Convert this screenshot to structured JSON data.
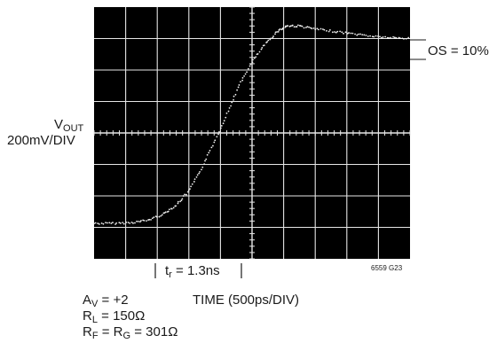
{
  "chart_data": {
    "type": "line",
    "title": "",
    "ylabel": {
      "main": "V",
      "sub": "OUT",
      "scale": "200mV/DIV"
    },
    "xlabel": "TIME (500ps/DIV)",
    "x_unit": "ps",
    "y_unit": "mV",
    "xlim": [
      -2500,
      2500
    ],
    "ylim": [
      -800,
      800
    ],
    "grid": true,
    "divisions": {
      "x": 10,
      "y": 8
    },
    "series": [
      {
        "name": "",
        "color": "#f2f2f2",
        "points": [
          [
            -2500,
            -575
          ],
          [
            -2200,
            -575
          ],
          [
            -1900,
            -570
          ],
          [
            -1650,
            -555
          ],
          [
            -1400,
            -515
          ],
          [
            -1200,
            -460
          ],
          [
            -1000,
            -370
          ],
          [
            -800,
            -230
          ],
          [
            -600,
            -60
          ],
          [
            -400,
            120
          ],
          [
            -200,
            305
          ],
          [
            0,
            450
          ],
          [
            200,
            560
          ],
          [
            400,
            645
          ],
          [
            550,
            680
          ],
          [
            750,
            680
          ],
          [
            1000,
            660
          ],
          [
            1300,
            645
          ],
          [
            1600,
            630
          ],
          [
            1900,
            615
          ],
          [
            2200,
            605
          ],
          [
            2500,
            600
          ]
        ]
      }
    ],
    "annotations": {
      "overshoot": "OS = 10%",
      "rise_time": {
        "main": "t",
        "sub": "r",
        "value": " = 1.3ns"
      },
      "figure_id": "6559 G23"
    }
  },
  "conditions": {
    "av": {
      "main": "A",
      "sub": "V",
      "value": " = +2"
    },
    "rl": {
      "main": "R",
      "sub": "L",
      "value": " = 150Ω"
    },
    "rf": {
      "main": "R",
      "sub1": "F",
      "eq": " = R",
      "sub2": "G",
      "value": " = 301Ω"
    }
  },
  "colors": {
    "screen": "#000000",
    "grid": "#e6e6e6",
    "trace": "#f2f2f2",
    "text": "#1a1a1a"
  }
}
